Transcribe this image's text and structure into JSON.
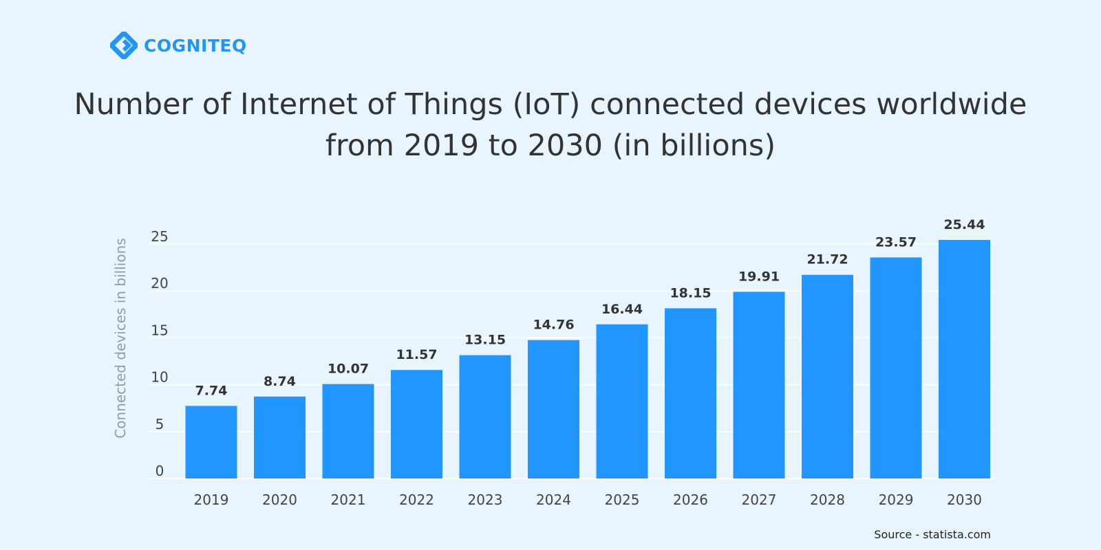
{
  "brand": {
    "name": "COGNITEQ",
    "icon": "cogniteq-logo-icon",
    "color": "#2196f3"
  },
  "source": "Source - statista.com",
  "chart_data": {
    "type": "bar",
    "title": "Number of Internet of Things (IoT) connected devices worldwide from 2019 to 2030 (in billions)",
    "ylabel": "Connected  devices in billions",
    "xlabel": "",
    "categories": [
      "2019",
      "2020",
      "2021",
      "2022",
      "2023",
      "2024",
      "2025",
      "2026",
      "2027",
      "2028",
      "2029",
      "2030"
    ],
    "values": [
      7.74,
      8.74,
      10.07,
      11.57,
      13.15,
      14.76,
      16.44,
      18.15,
      19.91,
      21.72,
      23.57,
      25.44
    ],
    "data_labels": [
      "7.74",
      "8.74",
      "10.07",
      "11.57",
      "13.15",
      "14.76",
      "16.44",
      "18.15",
      "19.91",
      "21.72",
      "23.57",
      "25.44"
    ],
    "yticks": [
      "0",
      "5",
      "10",
      "15",
      "20",
      "25"
    ],
    "ylim": [
      0,
      25
    ],
    "grid": true,
    "legend": "none",
    "bar_color": "#2196ff",
    "grid_color": "#ffffff",
    "tick_color": "#444444",
    "ylabel_color": "#9a9a9a"
  }
}
